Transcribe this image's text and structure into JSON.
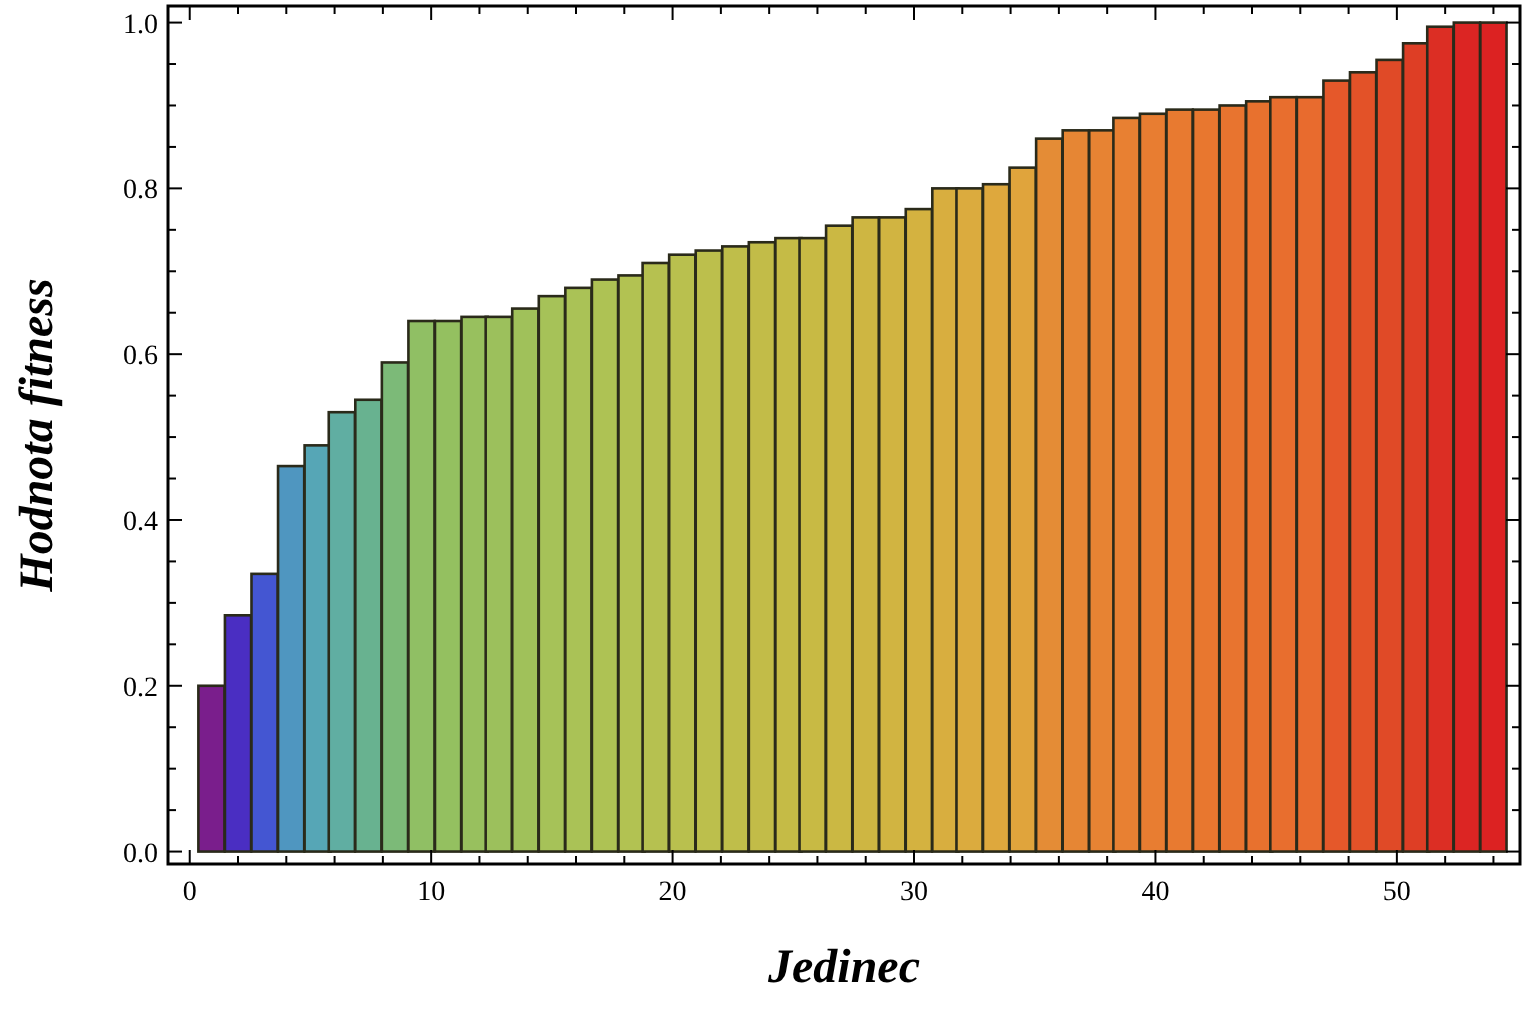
{
  "chart_data": {
    "type": "bar",
    "xlabel": "Jedinec",
    "ylabel": "Hodnota fitness",
    "x": [
      0.9,
      2.0,
      3.1,
      4.2,
      5.3,
      6.3,
      7.4,
      8.5,
      9.6,
      10.7,
      11.8,
      12.8,
      13.9,
      15.0,
      16.1,
      17.2,
      18.3,
      19.3,
      20.4,
      21.5,
      22.6,
      23.7,
      24.8,
      25.8,
      26.9,
      28.0,
      29.1,
      30.2,
      31.3,
      32.3,
      33.4,
      34.5,
      35.6,
      36.7,
      37.8,
      38.8,
      39.9,
      41.0,
      42.1,
      43.2,
      44.3,
      45.3,
      46.4,
      47.5,
      48.6,
      49.7,
      50.8,
      51.8,
      52.9,
      54.0
    ],
    "values": [
      0.2,
      0.285,
      0.335,
      0.465,
      0.49,
      0.53,
      0.545,
      0.59,
      0.64,
      0.64,
      0.645,
      0.645,
      0.655,
      0.67,
      0.68,
      0.69,
      0.695,
      0.71,
      0.72,
      0.725,
      0.73,
      0.735,
      0.74,
      0.74,
      0.755,
      0.765,
      0.765,
      0.775,
      0.8,
      0.8,
      0.805,
      0.825,
      0.86,
      0.87,
      0.87,
      0.885,
      0.89,
      0.895,
      0.895,
      0.9,
      0.905,
      0.91,
      0.91,
      0.93,
      0.94,
      0.955,
      0.975,
      0.995,
      1.0,
      1.0
    ],
    "colors": [
      "#7a1e8c",
      "#4a2ec2",
      "#4456d2",
      "#4f96c0",
      "#56a6b6",
      "#60aea2",
      "#68b290",
      "#7cba78",
      "#90bf64",
      "#94c060",
      "#98c05e",
      "#9cc05c",
      "#a0c15a",
      "#a6c258",
      "#aac256",
      "#aec254",
      "#b2c252",
      "#b6c150",
      "#b9c04e",
      "#bcbf4c",
      "#bfbe4a",
      "#c2bc48",
      "#c5bb46",
      "#c8ba44",
      "#cbb843",
      "#ceb642",
      "#d1b441",
      "#d4b240",
      "#d8ae3f",
      "#dbab3e",
      "#dea83d",
      "#e0a43c",
      "#e48c36",
      "#e68634",
      "#e78333",
      "#e88032",
      "#e87d31",
      "#e87a30",
      "#e8772f",
      "#e8742f",
      "#e8712e",
      "#e86e2e",
      "#e86b2e",
      "#e5582a",
      "#e35228",
      "#e04a27",
      "#de3e25",
      "#dc2e24",
      "#dc2523",
      "#dc2222"
    ],
    "xlim": [
      -0.9,
      55.1
    ],
    "ylim": [
      -0.015,
      1.02
    ],
    "xticks": [
      0,
      {
        "value": 2,
        "label": null
      },
      {
        "value": 4,
        "label": null
      },
      {
        "value": 6,
        "label": null
      },
      {
        "value": 8,
        "label": null
      },
      10,
      {
        "value": 12,
        "label": null
      },
      {
        "value": 14,
        "label": null
      },
      {
        "value": 16,
        "label": null
      },
      {
        "value": 18,
        "label": null
      },
      20,
      {
        "value": 22,
        "label": null
      },
      {
        "value": 24,
        "label": null
      },
      {
        "value": 26,
        "label": null
      },
      {
        "value": 28,
        "label": null
      },
      30,
      {
        "value": 32,
        "label": null
      },
      {
        "value": 34,
        "label": null
      },
      {
        "value": 36,
        "label": null
      },
      {
        "value": 38,
        "label": null
      },
      40,
      {
        "value": 42,
        "label": null
      },
      {
        "value": 44,
        "label": null
      },
      {
        "value": 46,
        "label": null
      },
      {
        "value": 48,
        "label": null
      },
      50,
      {
        "value": 52,
        "label": null
      },
      {
        "value": 54,
        "label": null
      }
    ],
    "yticks": [
      {
        "value": 0,
        "label": "0.0"
      },
      {
        "value": 0.05,
        "label": null
      },
      {
        "value": 0.1,
        "label": null
      },
      {
        "value": 0.15,
        "label": null
      },
      {
        "value": 0.2,
        "label": "0.2"
      },
      {
        "value": 0.25,
        "label": null
      },
      {
        "value": 0.3,
        "label": null
      },
      {
        "value": 0.35,
        "label": null
      },
      {
        "value": 0.4,
        "label": "0.4"
      },
      {
        "value": 0.45,
        "label": null
      },
      {
        "value": 0.5,
        "label": null
      },
      {
        "value": 0.55,
        "label": null
      },
      {
        "value": 0.6,
        "label": "0.6"
      },
      {
        "value": 0.65,
        "label": null
      },
      {
        "value": 0.7,
        "label": null
      },
      {
        "value": 0.75,
        "label": null
      },
      {
        "value": 0.8,
        "label": "0.8"
      },
      {
        "value": 0.85,
        "label": null
      },
      {
        "value": 0.9,
        "label": null
      },
      {
        "value": 0.95,
        "label": null
      },
      {
        "value": 1.0,
        "label": "1.0"
      }
    ]
  }
}
